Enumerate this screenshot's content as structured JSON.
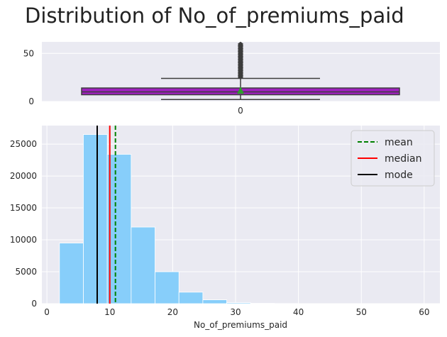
{
  "title": "Distribution of No_of_premiums_paid",
  "colors": {
    "panel_bg": "#eaeaf2",
    "grid": "#ffffff",
    "box_fill": "#a020c0",
    "box_edge": "#3d3d3d",
    "outlier": "#3d3d3d",
    "mean_marker": "#2ca02c",
    "hist_fill": "#87cefa",
    "mean_line": "#008000",
    "median_line": "#ff0000",
    "mode_line": "#000000"
  },
  "chart_data": [
    {
      "type": "box",
      "orientation": "horizontal",
      "yticks": [
        0,
        50
      ],
      "ylim": [
        0,
        62
      ],
      "category_label": "0",
      "stats": {
        "q1": 7,
        "median": 10,
        "q3": 14,
        "whisker_low": 2,
        "whisker_high": 24,
        "mean": 11,
        "outliers": [
          25,
          26,
          27,
          28,
          29,
          30,
          31,
          32,
          33,
          34,
          35,
          36,
          37,
          38,
          39,
          40,
          41,
          42,
          43,
          44,
          45,
          46,
          47,
          48,
          49,
          50,
          51,
          52,
          53,
          54,
          55,
          56,
          57,
          58,
          59,
          60
        ]
      }
    },
    {
      "type": "bar",
      "subtype": "histogram",
      "xlabel": "No_of_premiums_paid",
      "xlim": [
        -0.8,
        62.5
      ],
      "ylim": [
        0,
        27900
      ],
      "xticks": [
        0,
        10,
        20,
        30,
        40,
        50,
        60
      ],
      "yticks": [
        0,
        5000,
        10000,
        15000,
        20000,
        25000
      ],
      "bins": [
        {
          "x0": 2.0,
          "x1": 5.8,
          "count": 9500
        },
        {
          "x0": 5.8,
          "x1": 9.6,
          "count": 26500
        },
        {
          "x0": 9.6,
          "x1": 13.4,
          "count": 23400
        },
        {
          "x0": 13.4,
          "x1": 17.2,
          "count": 12000
        },
        {
          "x0": 17.2,
          "x1": 21.0,
          "count": 5000
        },
        {
          "x0": 21.0,
          "x1": 24.8,
          "count": 1800
        },
        {
          "x0": 24.8,
          "x1": 28.6,
          "count": 600
        },
        {
          "x0": 28.6,
          "x1": 32.4,
          "count": 150
        },
        {
          "x0": 32.4,
          "x1": 36.2,
          "count": 50
        },
        {
          "x0": 36.2,
          "x1": 40.0,
          "count": 20
        },
        {
          "x0": 40.0,
          "x1": 43.8,
          "count": 10
        }
      ],
      "lines": [
        {
          "name": "mean",
          "x": 10.9,
          "style": "dashed",
          "color": "#008000"
        },
        {
          "name": "median",
          "x": 10.0,
          "style": "solid",
          "color": "#ff0000"
        },
        {
          "name": "mode",
          "x": 8.0,
          "style": "solid",
          "color": "#000000"
        }
      ],
      "legend": {
        "placement": "top-right",
        "entries": [
          "mean",
          "median",
          "mode"
        ]
      },
      "grid": true
    }
  ]
}
